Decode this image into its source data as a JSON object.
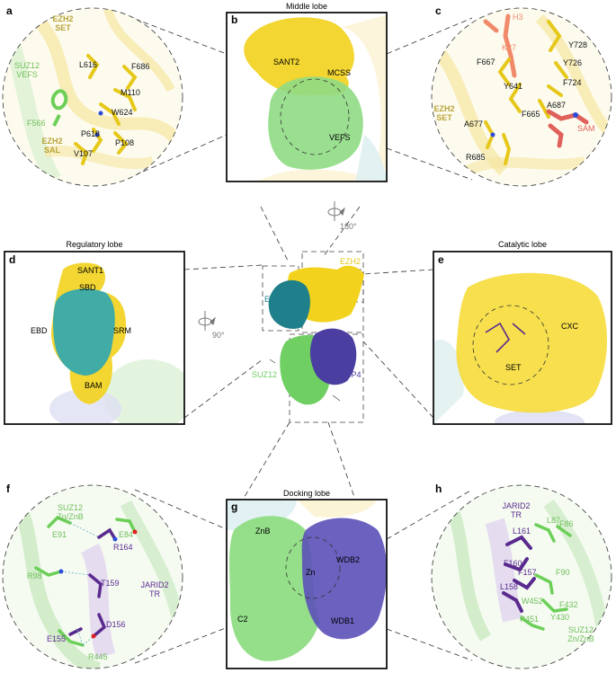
{
  "panels": {
    "a": {
      "letter": "a",
      "labels": {
        "ezh2_set": [
          "EZH2",
          "SET"
        ],
        "suz12_vefs": [
          "SUZ12",
          "VEFS"
        ],
        "ezh2_sal": [
          "EZH2",
          "SAL"
        ]
      },
      "residues": [
        "L616",
        "F686",
        "M110",
        "W624",
        "F566",
        "P618",
        "P108",
        "V107"
      ]
    },
    "b": {
      "letter": "b",
      "title": "Middle lobe",
      "labels": [
        "SANT2",
        "MCSS",
        "VEFS"
      ]
    },
    "c": {
      "letter": "c",
      "labels": {
        "h3": "H3",
        "k27": "K27",
        "ezh2_set": [
          "EZH2",
          "SET"
        ],
        "sam": "SAM"
      },
      "residues": [
        "Y728",
        "F667",
        "Y726",
        "Y641",
        "F724",
        "A687",
        "F665",
        "A677",
        "R685"
      ]
    },
    "center": {
      "labels": [
        "EZH2",
        "EED",
        "SUZ12",
        "RBBP4"
      ],
      "rot_top": "180°",
      "rot_left": "90°"
    },
    "d": {
      "letter": "d",
      "title": "Regulatory lobe",
      "labels": [
        "SANT1",
        "SBD",
        "EBD",
        "SRM",
        "BAM"
      ]
    },
    "e": {
      "letter": "e",
      "title": "Catalytic lobe",
      "labels": [
        "CXC",
        "SET"
      ]
    },
    "f": {
      "letter": "f",
      "labels": {
        "suz12": [
          "SUZ12",
          "Zn/ZnB"
        ],
        "jarid2": [
          "JARID2",
          "TR"
        ]
      },
      "residues": [
        "E91",
        "E84",
        "R164",
        "R98",
        "T159",
        "D156",
        "E155",
        "R445"
      ]
    },
    "g": {
      "letter": "g",
      "title": "Docking lobe",
      "labels": [
        "ZnB",
        "Zn",
        "WDB2",
        "C2",
        "WDB1"
      ]
    },
    "h": {
      "letter": "h",
      "labels": {
        "jarid2": [
          "JARID2",
          "TR"
        ],
        "suz12": [
          "SUZ12",
          "Zn/ZnB"
        ]
      },
      "residues": [
        "L161",
        "L87",
        "F86",
        "F160",
        "F157",
        "F90",
        "L158",
        "W452",
        "F432",
        "P451",
        "Y430"
      ]
    }
  },
  "colors": {
    "ezh2": "#f2d21c",
    "eed": "#1f7f8a",
    "suz12": "#6fcf63",
    "rbbp4": "#4a3ea0",
    "h3": "#f08a6a",
    "sam": "#e0605a",
    "jarid2": "#5a2a8f",
    "jarid2_light": "#c9b6e0",
    "ezh2_text": "#b8a43a",
    "suz12_text": "#6fbf5a"
  }
}
